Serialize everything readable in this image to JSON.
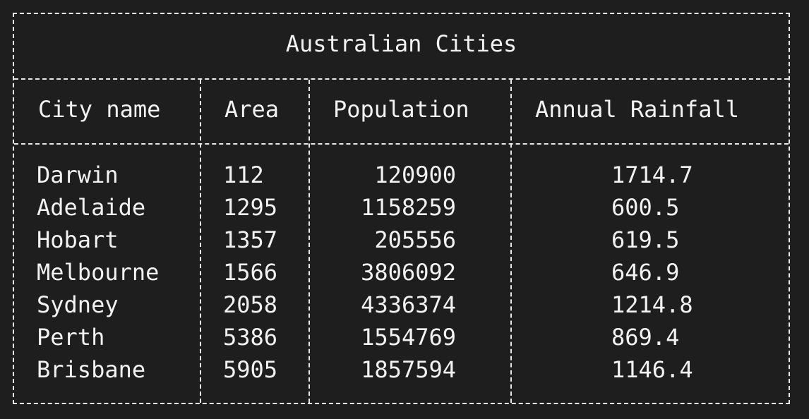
{
  "table": {
    "title": "Australian Cities",
    "headers": [
      "City name",
      "Area",
      "Population",
      "Annual Rainfall"
    ],
    "rows": [
      [
        "Darwin",
        "112",
        "120900",
        "1714.7"
      ],
      [
        "Adelaide",
        "1295",
        "1158259",
        "600.5"
      ],
      [
        "Hobart",
        "1357",
        "205556",
        "619.5"
      ],
      [
        "Melbourne",
        "1566",
        "3806092",
        "646.9"
      ],
      [
        "Sydney",
        "2058",
        "4336374",
        "1214.8"
      ],
      [
        "Perth",
        "5386",
        "1554769",
        "869.4"
      ],
      [
        "Brisbane",
        "5905",
        "1857594",
        "1146.4"
      ]
    ]
  }
}
